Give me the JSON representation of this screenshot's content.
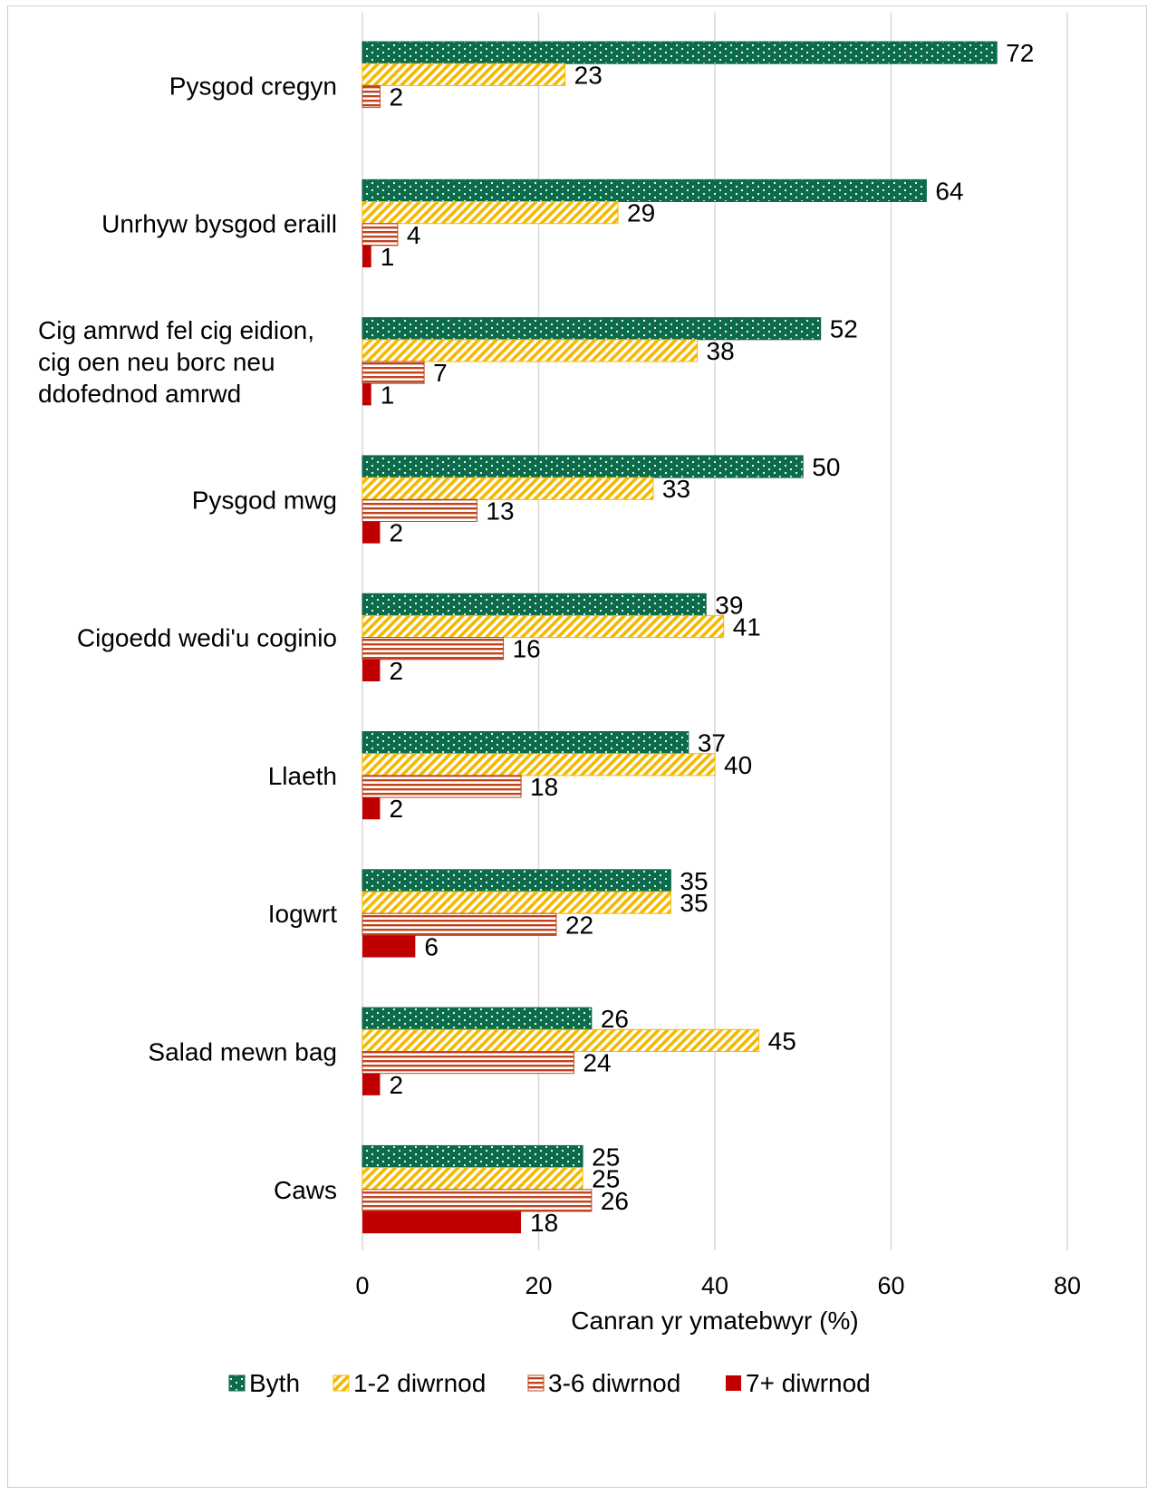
{
  "chart_data": {
    "type": "bar",
    "orientation": "horizontal",
    "categories": [
      [
        "Pysgod cregyn"
      ],
      [
        "Unrhyw bysgod eraill"
      ],
      [
        "Cig amrwd fel cig eidion,",
        "cig oen neu borc neu",
        "ddofednod amrwd"
      ],
      [
        "Pysgod mwg"
      ],
      [
        "Cigoedd wedi'u coginio"
      ],
      [
        "Llaeth"
      ],
      [
        "Iogwrt"
      ],
      [
        "Salad mewn bag"
      ],
      [
        "Caws"
      ]
    ],
    "series": [
      {
        "name": "Byth",
        "color": "#0b6b4a",
        "pattern": "dots",
        "values": [
          72,
          64,
          52,
          50,
          39,
          37,
          35,
          26,
          25
        ]
      },
      {
        "name": "1-2 diwrnod",
        "color": "#f5b800",
        "pattern": "diagonal",
        "values": [
          23,
          29,
          38,
          33,
          41,
          40,
          35,
          45,
          25
        ]
      },
      {
        "name": "3-6 diwrnod",
        "color": "#c0441e",
        "pattern": "horizontal",
        "values": [
          2,
          4,
          7,
          13,
          16,
          18,
          22,
          24,
          26
        ]
      },
      {
        "name": "7+ diwrnod",
        "color": "#c00000",
        "pattern": "solid",
        "values": [
          null,
          1,
          1,
          2,
          2,
          2,
          6,
          2,
          18
        ]
      }
    ],
    "xlabel": "Canran yr ymatebwyr (%)",
    "xlim": [
      0,
      80
    ],
    "xticks": [
      0,
      20,
      40,
      60,
      80
    ],
    "grid": true,
    "legend_position": "bottom"
  }
}
